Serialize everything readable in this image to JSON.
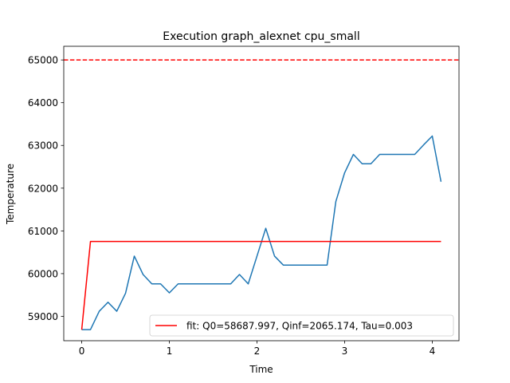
{
  "chart_data": {
    "type": "line",
    "title": "Execution graph_alexnet cpu_small",
    "xlabel": "Time",
    "ylabel": "Temperature",
    "xlim": [
      -0.205,
      4.305
    ],
    "ylim": [
      58430,
      65320
    ],
    "xticks": [
      0,
      1,
      2,
      3,
      4
    ],
    "yticks": [
      59000,
      60000,
      61000,
      62000,
      63000,
      64000,
      65000
    ],
    "grid": false,
    "legend_position": "lower-right",
    "series": [
      {
        "color": "#1f77b4",
        "style": "solid",
        "x": [
          0,
          0.1,
          0.2,
          0.3,
          0.4,
          0.5,
          0.6,
          0.7,
          0.8,
          0.9,
          1.0,
          1.1,
          1.2,
          1.3,
          1.4,
          1.5,
          1.6,
          1.7,
          1.8,
          1.9,
          2.0,
          2.1,
          2.2,
          2.3,
          2.4,
          2.5,
          2.6,
          2.7,
          2.8,
          2.9,
          3.0,
          3.1,
          3.2,
          3.3,
          3.4,
          3.5,
          3.6,
          3.7,
          3.8,
          3.9,
          4.0,
          4.1
        ],
        "y": [
          58690,
          58690,
          59120,
          59330,
          59120,
          59540,
          60410,
          59980,
          59760,
          59760,
          59550,
          59760,
          59760,
          59760,
          59760,
          59760,
          59760,
          59760,
          59980,
          59760,
          60410,
          61060,
          60410,
          60200,
          60200,
          60200,
          60200,
          60200,
          60200,
          61690,
          62360,
          62790,
          62570,
          62570,
          62790,
          62790,
          62790,
          62790,
          62790,
          63010,
          63220,
          62150
        ]
      },
      {
        "name": "fit: Q0=58687.997, Qinf=2065.174, Tau=0.003",
        "color": "#ff0000",
        "style": "solid",
        "x": [
          0,
          0.1,
          0.2,
          0.5,
          1.0,
          2.0,
          3.0,
          4.0,
          4.1
        ],
        "y": [
          58688,
          60753,
          60753,
          60753,
          60753,
          60753,
          60753,
          60753,
          60753
        ]
      },
      {
        "color": "#ff0000",
        "style": "dashed",
        "x": [
          -0.205,
          4.305
        ],
        "y": [
          65000,
          65000
        ]
      }
    ]
  }
}
